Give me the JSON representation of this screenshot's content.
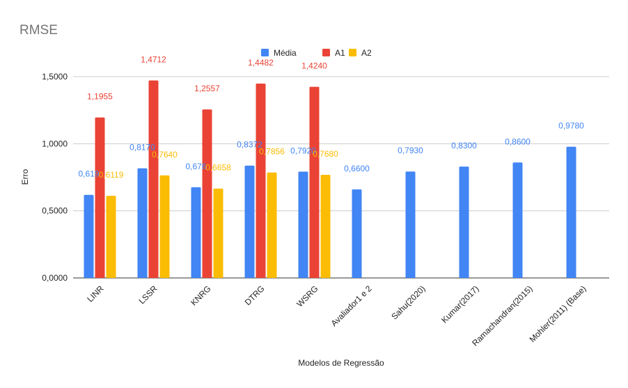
{
  "chart_data": {
    "type": "bar",
    "title": "RMSE",
    "xlabel": "Modelos de Regressão",
    "ylabel": "Erro",
    "ylim": [
      0,
      1.5
    ],
    "yticks": [
      0,
      0.5,
      1.0,
      1.5
    ],
    "ytick_labels": [
      "0,0000",
      "0,5000",
      "1,0000",
      "1,5000"
    ],
    "grid": true,
    "legend_position": "top",
    "categories": [
      "LINR",
      "LSSR",
      "KNRG",
      "DTRG",
      "WSRG",
      "Avaliador1 e 2",
      "Sahu(2020)",
      "Kumar(2017)",
      "Ramachandran(2015)",
      "Mohler(2011) (Base)"
    ],
    "series": [
      {
        "name": "Média",
        "color": "#4285f4",
        "values": [
          0.619,
          0.817,
          0.676,
          0.8372,
          0.792,
          0.66,
          0.793,
          0.83,
          0.86,
          0.978
        ],
        "labels": [
          "0,619",
          "0,8170",
          "0,676",
          "0,8372",
          "0,7920",
          "0,6600",
          "0,7930",
          "0,8300",
          "0,8600",
          "0,9780"
        ]
      },
      {
        "name": "A1",
        "color": "#ea4335",
        "values": [
          1.1955,
          1.4712,
          1.2557,
          1.4482,
          1.424,
          null,
          null,
          null,
          null,
          null
        ],
        "labels": [
          "1,1955",
          "1,4712",
          "1,2557",
          "1,4482",
          "1,4240",
          null,
          null,
          null,
          null,
          null
        ]
      },
      {
        "name": "A2",
        "color": "#fbbc04",
        "values": [
          0.6119,
          0.764,
          0.6658,
          0.7856,
          0.768,
          null,
          null,
          null,
          null,
          null
        ],
        "labels": [
          "0,6119",
          "0,7640",
          "0,6658",
          "0,7856",
          "0,7680",
          null,
          null,
          null,
          null,
          null
        ]
      }
    ]
  }
}
